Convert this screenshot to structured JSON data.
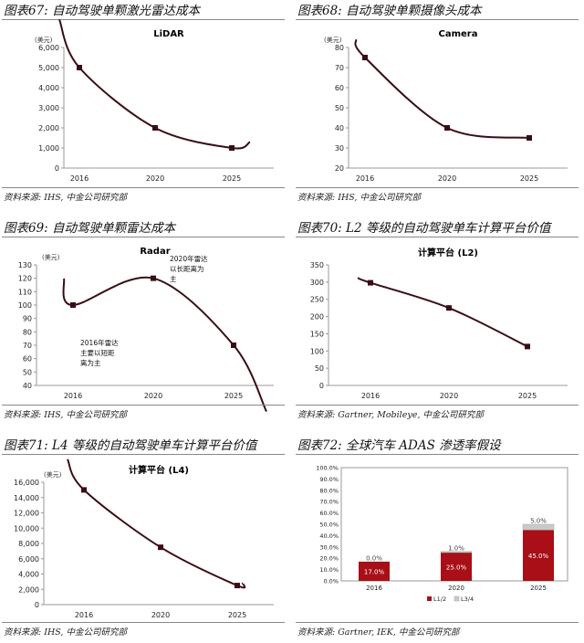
{
  "panels": [
    {
      "title": "图表67: 自动驾驶单颗激光雷达成本",
      "source": "资料来源: IHS, 中金公司研究部"
    },
    {
      "title": "图表68: 自动驾驶单颗摄像头成本",
      "source": "资料来源: IHS, 中金公司研究部"
    },
    {
      "title": "图表69: 自动驾驶单颗雷达成本",
      "source": "资料来源: IHS, 中金公司研究部"
    },
    {
      "title": "图表70: L2 等级的自动驾驶单车计算平台价值",
      "source": "资料来源: Gartner, Mobileye, 中金公司研究部"
    },
    {
      "title": "图表71: L4 等级的自动驾驶单车计算平台价值",
      "source": "资料来源: IHS, 中金公司研究部"
    },
    {
      "title": "图表72: 全球汽车 ADAS 渗透率假设",
      "source": "资料来源: Gartner, IEK, 中金公司研究部"
    }
  ],
  "colors": {
    "line": "#3a0d14",
    "marker": "#3a0d14",
    "bar": "#a80f16",
    "bar_top": "#c9c9c9",
    "axis": "#999999"
  },
  "chart_data": [
    {
      "type": "line",
      "title": "LiDAR",
      "unit": "(美元)",
      "categories": [
        "2016",
        "2020",
        "2025"
      ],
      "values": [
        5000,
        2000,
        1000
      ],
      "ylim": [
        0,
        6000
      ],
      "yticks": [
        0,
        1000,
        2000,
        3000,
        4000,
        5000,
        6000
      ],
      "grid": false,
      "annotations": []
    },
    {
      "type": "line",
      "title": "Camera",
      "unit": "(美元)",
      "categories": [
        "2016",
        "2020",
        "2025"
      ],
      "values": [
        75,
        40,
        35
      ],
      "ylim": [
        20,
        80
      ],
      "yticks": [
        20,
        30,
        40,
        50,
        60,
        70,
        80
      ],
      "grid": false,
      "annotations": []
    },
    {
      "type": "line",
      "title": "Radar",
      "unit": "(美元)",
      "categories": [
        "2016",
        "2020",
        "2025"
      ],
      "values": [
        100,
        120,
        70
      ],
      "ylim": [
        40,
        130
      ],
      "yticks": [
        40,
        50,
        60,
        70,
        80,
        90,
        100,
        110,
        120,
        130
      ],
      "grid": false,
      "annotations": [
        {
          "lines": [
            "2016年雷达",
            "主要以短距",
            "离为主"
          ]
        },
        {
          "lines": [
            "2020年雷达",
            "以长距离为",
            "主"
          ]
        }
      ]
    },
    {
      "type": "line",
      "title": "计算平台 (L2)",
      "unit": "",
      "categories": [
        "2016",
        "2020",
        "2025"
      ],
      "values": [
        298,
        225,
        113
      ],
      "ylim": [
        0,
        350
      ],
      "yticks": [
        0,
        50,
        100,
        150,
        200,
        250,
        300,
        350
      ],
      "grid": false,
      "annotations": []
    },
    {
      "type": "line",
      "title": "计算平台 (L4)",
      "unit": "(美元)",
      "categories": [
        "2016",
        "2020",
        "2025"
      ],
      "values": [
        15000,
        7500,
        2500
      ],
      "ylim": [
        0,
        16000
      ],
      "yticks": [
        0,
        2000,
        4000,
        6000,
        8000,
        10000,
        12000,
        14000,
        16000
      ],
      "grid": false,
      "annotations": []
    },
    {
      "type": "bar",
      "stacked": true,
      "title": "",
      "categories": [
        "2016",
        "2020",
        "2025"
      ],
      "series": [
        {
          "name": "L1/2",
          "values": [
            17.0,
            25.0,
            45.0
          ],
          "labels": [
            "17.0%",
            "25.0%",
            "45.0%"
          ]
        },
        {
          "name": "L3/4",
          "values": [
            0,
            1.0,
            5.0
          ],
          "labels": [
            "0.0%",
            "1.0%",
            "5.0%"
          ]
        }
      ],
      "ylim": [
        0,
        100
      ],
      "yticks": [
        "0.0%",
        "10.0%",
        "20.0%",
        "30.0%",
        "40.0%",
        "50.0%",
        "60.0%",
        "70.0%",
        "80.0%",
        "90.0%",
        "100.0%"
      ],
      "legend": "bottom",
      "grid": false
    }
  ]
}
